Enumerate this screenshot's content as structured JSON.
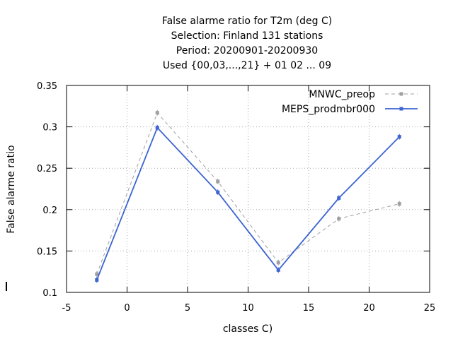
{
  "chart_data": {
    "type": "line",
    "title_lines": [
      "False alarme ratio  for T2m (deg C)",
      "Selection: Finland     131 stations",
      "Period: 20200901-20200930",
      "Used {00,03,...,21} + 01 02 ... 09"
    ],
    "xlabel": "classes C)",
    "ylabel": "False alarme ratio",
    "xlim": [
      -5,
      25
    ],
    "ylim": [
      0.1,
      0.35
    ],
    "xticks": [
      -5,
      0,
      5,
      10,
      15,
      20,
      25
    ],
    "xtick_labels": [
      "-5",
      "0",
      "5",
      "10",
      "15",
      "20",
      "25"
    ],
    "yticks": [
      0.1,
      0.15,
      0.2,
      0.25,
      0.3,
      0.35
    ],
    "ytick_labels": [
      "0.1",
      "0.15",
      "0.2",
      "0.25",
      "0.3",
      "0.35"
    ],
    "grid": true,
    "legend_position": "top-right",
    "x": [
      -2.5,
      2.5,
      7.5,
      12.5,
      17.5,
      22.5
    ],
    "series": [
      {
        "name": "MNWC_preop",
        "values": [
          0.122,
          0.317,
          0.234,
          0.136,
          0.189,
          0.207
        ],
        "color": "#a0a0a0",
        "style": "dashed"
      },
      {
        "name": "MEPS_prodmbr000",
        "values": [
          0.115,
          0.299,
          0.221,
          0.127,
          0.214,
          0.288
        ],
        "color": "#3c64d2",
        "style": "solid"
      }
    ]
  }
}
